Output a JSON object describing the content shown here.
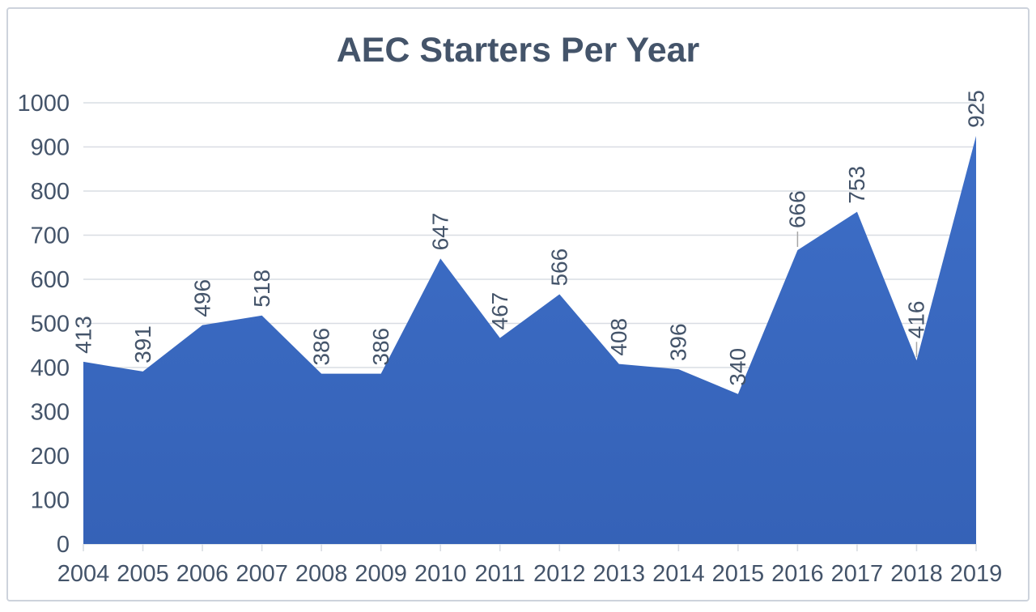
{
  "chart_data": {
    "type": "area",
    "title": "AEC Starters Per Year",
    "categories": [
      "2004",
      "2005",
      "2006",
      "2007",
      "2008",
      "2009",
      "2010",
      "2011",
      "2012",
      "2013",
      "2014",
      "2015",
      "2016",
      "2017",
      "2018",
      "2019"
    ],
    "values": [
      413,
      391,
      496,
      518,
      386,
      386,
      647,
      467,
      566,
      408,
      396,
      340,
      666,
      753,
      416,
      925
    ],
    "xlabel": "",
    "ylabel": "",
    "ylim": [
      0,
      1000
    ],
    "ytick_step": 100,
    "grid": "horizontal",
    "legend": "none",
    "data_labels": {
      "rotation": -90,
      "position": "above-point",
      "leader_line_indices": [
        12,
        14
      ]
    },
    "colors": {
      "area_fill_top": "#3D6EC7",
      "area_fill_bottom": "#3562B7",
      "label_text": "#44546A",
      "title_text": "#44546A",
      "gridline": "#D9DDE3",
      "leader_line": "#A6A6A6",
      "frame_border": "#CDD3DC",
      "background": "#FFFFFF"
    }
  }
}
